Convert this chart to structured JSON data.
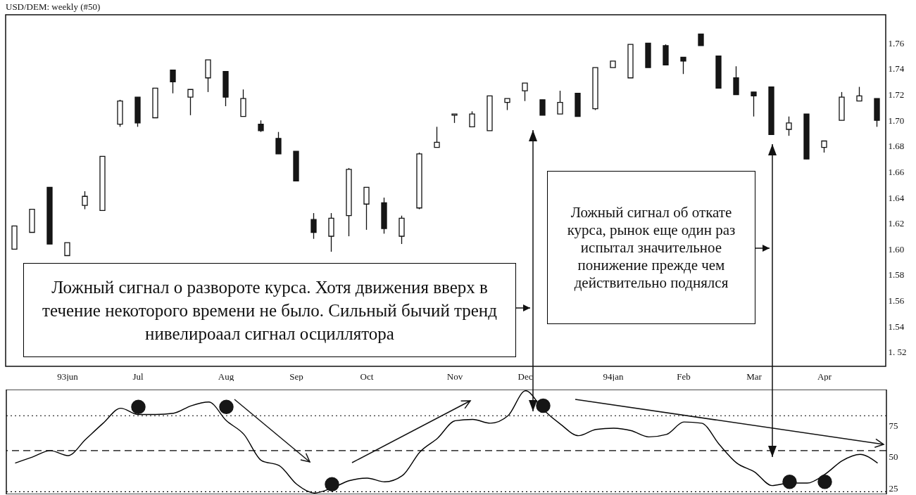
{
  "chart_data": [
    {
      "type": "candlestick",
      "title": "USD/DEM: weekly (#50)",
      "categories": [
        null,
        null,
        null,
        "93jun",
        null,
        null,
        null,
        "Jul",
        null,
        null,
        null,
        null,
        "Aug",
        null,
        null,
        null,
        "Sep",
        null,
        null,
        null,
        "Oct",
        null,
        null,
        null,
        null,
        "Nov",
        null,
        null,
        null,
        "Dec",
        null,
        null,
        null,
        null,
        "94jan",
        null,
        null,
        null,
        "Feb",
        null,
        null,
        null,
        "Mar",
        null,
        null,
        null,
        "Apr",
        null,
        null,
        null
      ],
      "ohlc": [
        [
          1.6,
          1.618,
          1.6,
          1.618
        ],
        [
          1.613,
          1.631,
          1.613,
          1.631
        ],
        [
          1.648,
          1.648,
          1.604,
          1.604
        ],
        [
          1.595,
          1.605,
          1.595,
          1.605
        ],
        [
          1.634,
          1.645,
          1.631,
          1.641
        ],
        [
          1.63,
          1.672,
          1.63,
          1.672
        ],
        [
          1.697,
          1.716,
          1.695,
          1.715
        ],
        [
          1.718,
          1.718,
          1.695,
          1.698
        ],
        [
          1.702,
          1.725,
          1.702,
          1.725
        ],
        [
          1.739,
          1.739,
          1.721,
          1.73
        ],
        [
          1.718,
          1.724,
          1.704,
          1.724
        ],
        [
          1.733,
          1.747,
          1.722,
          1.747
        ],
        [
          1.738,
          1.738,
          1.711,
          1.718
        ],
        [
          1.703,
          1.724,
          1.703,
          1.717
        ],
        [
          1.697,
          1.7,
          1.691,
          1.692
        ],
        [
          1.686,
          1.691,
          1.674,
          1.674
        ],
        [
          1.676,
          1.676,
          1.653,
          1.653
        ],
        [
          1.623,
          1.628,
          1.608,
          1.613
        ],
        [
          1.61,
          1.628,
          1.598,
          1.624
        ],
        [
          1.626,
          1.663,
          1.61,
          1.662
        ],
        [
          1.635,
          1.648,
          1.615,
          1.648
        ],
        [
          1.636,
          1.64,
          1.612,
          1.616
        ],
        [
          1.61,
          1.626,
          1.604,
          1.624
        ],
        [
          1.632,
          1.675,
          1.631,
          1.674
        ],
        [
          1.679,
          1.695,
          1.679,
          1.683
        ],
        [
          1.704,
          1.705,
          1.698,
          1.705
        ],
        [
          1.695,
          1.707,
          1.695,
          1.705
        ],
        [
          1.692,
          1.719,
          1.692,
          1.719
        ],
        [
          1.714,
          1.717,
          1.708,
          1.717
        ],
        [
          1.723,
          1.729,
          1.715,
          1.729
        ],
        [
          1.716,
          1.716,
          1.704,
          1.704
        ],
        [
          1.705,
          1.723,
          1.705,
          1.714
        ],
        [
          1.721,
          1.721,
          1.703,
          1.703
        ],
        [
          1.709,
          1.741,
          1.708,
          1.741
        ],
        [
          1.741,
          1.746,
          1.741,
          1.746
        ],
        [
          1.733,
          1.759,
          1.733,
          1.759
        ],
        [
          1.76,
          1.76,
          1.741,
          1.741
        ],
        [
          1.758,
          1.759,
          1.743,
          1.743
        ],
        [
          1.749,
          1.749,
          1.736,
          1.746
        ],
        [
          1.767,
          1.767,
          1.758,
          1.758
        ],
        [
          1.75,
          1.75,
          1.725,
          1.725
        ],
        [
          1.733,
          1.742,
          1.72,
          1.72
        ],
        [
          1.722,
          1.722,
          1.703,
          1.719
        ],
        [
          1.726,
          1.726,
          1.689,
          1.689
        ],
        [
          1.693,
          1.703,
          1.688,
          1.698
        ],
        [
          1.705,
          1.705,
          1.67,
          1.67
        ],
        [
          1.679,
          1.684,
          1.675,
          1.684
        ],
        [
          1.7,
          1.722,
          1.7,
          1.718
        ],
        [
          1.715,
          1.726,
          1.715,
          1.719
        ],
        [
          1.717,
          1.717,
          1.695,
          1.7
        ]
      ],
      "ylim": [
        1.509,
        1.782
      ],
      "yticks": [
        {
          "value": 1.52,
          "label": "1. 52"
        },
        {
          "value": 1.54,
          "label": "1.54"
        },
        {
          "value": 1.56,
          "label": "1.56"
        },
        {
          "value": 1.58,
          "label": "1.58"
        },
        {
          "value": 1.6,
          "label": "1.60"
        },
        {
          "value": 1.62,
          "label": "1.62"
        },
        {
          "value": 1.64,
          "label": "1.64"
        },
        {
          "value": 1.66,
          "label": "1.66"
        },
        {
          "value": 1.68,
          "label": "1.68"
        },
        {
          "value": 1.7,
          "label": "1.70"
        },
        {
          "value": 1.72,
          "label": "1.72"
        },
        {
          "value": 1.74,
          "label": "1.74"
        },
        {
          "value": 1.76,
          "label": "1.76"
        }
      ],
      "annotations": [
        "Ложный сигнал о развороте курса. Хотя движения вверх в течение некоторого времени не было. Сильный бычий тренд нивелироаал сигнал осциллятора",
        "Ложный сигнал об откате курса, рынок еще один раз испытал значительное понижение прежде чем действительно поднялся"
      ]
    },
    {
      "type": "line",
      "categories": [
        null,
        null,
        null,
        null,
        null,
        null,
        null,
        null,
        null,
        null,
        null,
        null,
        null,
        null,
        null,
        null,
        null,
        null,
        null,
        null,
        null,
        null,
        null,
        null,
        null,
        null,
        null,
        null,
        null,
        null,
        null,
        null,
        null,
        null,
        null,
        null,
        null,
        null,
        null,
        null,
        null,
        null,
        null,
        null,
        null,
        null,
        null,
        null,
        null,
        null
      ],
      "series": [
        {
          "color": "#000000",
          "values": [
            45,
            50,
            55,
            51,
            64,
            77,
            89,
            84,
            84,
            85,
            91,
            94,
            79,
            68,
            47,
            43,
            28,
            21,
            25,
            31,
            33,
            30,
            35,
            54,
            65,
            79,
            80,
            77,
            83,
            103,
            88,
            76,
            67,
            72,
            73,
            71,
            66,
            68,
            78,
            77,
            60,
            45,
            38,
            27,
            29,
            29,
            36,
            47,
            52,
            45
          ]
        },
        {
          "type": "scatter",
          "color": "#161616",
          "values": [
            null,
            null,
            null,
            null,
            null,
            null,
            null,
            90,
            null,
            null,
            null,
            null,
            90,
            null,
            null,
            null,
            null,
            null,
            28,
            null,
            null,
            null,
            null,
            null,
            null,
            null,
            null,
            null,
            null,
            null,
            91,
            null,
            null,
            null,
            null,
            null,
            null,
            null,
            null,
            null,
            null,
            null,
            null,
            null,
            30,
            null,
            30,
            null,
            null,
            null
          ]
        }
      ],
      "ylim": [
        20,
        104
      ],
      "yticks": [
        25,
        50,
        75
      ],
      "ref_lines": [
        {
          "axis": "y",
          "value": 83,
          "line_style": "dotted",
          "color": "#000000"
        },
        {
          "axis": "y",
          "value": 55,
          "line_style": "dashed",
          "color": "#000000"
        },
        {
          "axis": "y",
          "value": 22,
          "line_style": "dotted",
          "color": "#000000"
        }
      ],
      "tick_labels": "y"
    }
  ]
}
